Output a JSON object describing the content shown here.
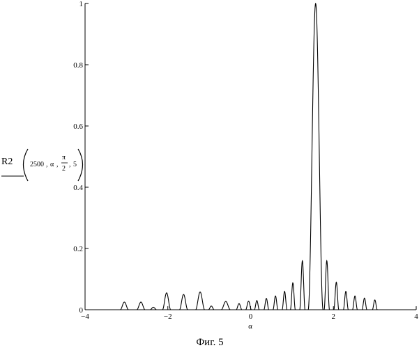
{
  "chart_data": {
    "type": "line",
    "xlabel": "α",
    "xlim": [
      -4,
      4
    ],
    "ylim": [
      0,
      1
    ],
    "x_ticks": [
      "−4",
      "−2",
      "0",
      "2",
      "4"
    ],
    "x_tick_values": [
      -4,
      -2,
      0,
      2,
      4
    ],
    "y_ticks": [
      "0",
      "0.2",
      "0.4",
      "0.6",
      "0.8",
      "1"
    ],
    "y_tick_values": [
      0,
      0.2,
      0.4,
      0.6,
      0.8,
      1
    ],
    "ylabel": {
      "func": "R2",
      "arg1": "2500",
      "arg2": "α",
      "pi": "π",
      "den": "2",
      "arg4": "5",
      "sep": ","
    },
    "grid": false,
    "series": [
      {
        "lobes": [
          {
            "x": -3.05,
            "y": 0.025,
            "w": 0.2
          },
          {
            "x": -2.65,
            "y": 0.025,
            "w": 0.2
          },
          {
            "x": -2.35,
            "y": 0.008,
            "w": 0.16
          },
          {
            "x": -2.03,
            "y": 0.055,
            "w": 0.2
          },
          {
            "x": -1.62,
            "y": 0.05,
            "w": 0.2
          },
          {
            "x": -1.22,
            "y": 0.058,
            "w": 0.22
          },
          {
            "x": -0.95,
            "y": 0.012,
            "w": 0.14
          },
          {
            "x": -0.6,
            "y": 0.027,
            "w": 0.22
          },
          {
            "x": -0.28,
            "y": 0.02,
            "w": 0.14
          },
          {
            "x": -0.05,
            "y": 0.028,
            "w": 0.14
          },
          {
            "x": 0.15,
            "y": 0.03,
            "w": 0.12
          },
          {
            "x": 0.38,
            "y": 0.037,
            "w": 0.12
          },
          {
            "x": 0.6,
            "y": 0.045,
            "w": 0.12
          },
          {
            "x": 0.82,
            "y": 0.06,
            "w": 0.12
          },
          {
            "x": 1.02,
            "y": 0.088,
            "w": 0.12
          },
          {
            "x": 1.25,
            "y": 0.16,
            "w": 0.13
          },
          {
            "x": 1.57,
            "y": 1.0,
            "w": 0.36
          },
          {
            "x": 1.84,
            "y": 0.16,
            "w": 0.13
          },
          {
            "x": 2.07,
            "y": 0.09,
            "w": 0.12
          },
          {
            "x": 2.3,
            "y": 0.06,
            "w": 0.12
          },
          {
            "x": 2.52,
            "y": 0.045,
            "w": 0.12
          },
          {
            "x": 2.75,
            "y": 0.038,
            "w": 0.12
          },
          {
            "x": 3.0,
            "y": 0.032,
            "w": 0.12
          }
        ]
      }
    ]
  },
  "caption": "Фиг. 5"
}
